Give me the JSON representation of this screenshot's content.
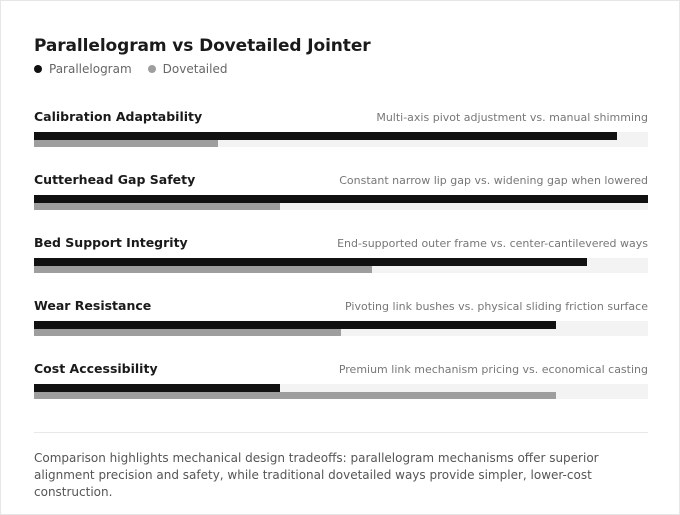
{
  "chart_data": {
    "type": "bar",
    "orientation": "horizontal",
    "title": "Parallelogram vs Dovetailed Jointer",
    "categories": [
      "Calibration Adaptability",
      "Cutterhead Gap Safety",
      "Bed Support Integrity",
      "Wear Resistance",
      "Cost Accessibility"
    ],
    "notes": [
      "Multi-axis pivot adjustment vs. manual shimming",
      "Constant narrow lip gap vs. widening gap when lowered",
      "End-supported outer frame vs. center-cantilevered ways",
      "Pivoting link bushes vs. physical sliding friction surface",
      "Premium link mechanism pricing vs. economical casting"
    ],
    "series": [
      {
        "name": "Parallelogram",
        "color": "#111111",
        "values": [
          95,
          100,
          90,
          85,
          40
        ]
      },
      {
        "name": "Dovetailed",
        "color": "#9e9e9e",
        "values": [
          30,
          40,
          55,
          50,
          85
        ]
      }
    ],
    "xlim": [
      0,
      100
    ],
    "legend_position": "top-left",
    "grid": false
  },
  "footer": {
    "caption": "Comparison highlights mechanical design tradeoffs: parallelogram mechanisms offer superior alignment precision and safety, while traditional dovetailed ways provide simpler, lower-cost construction."
  }
}
